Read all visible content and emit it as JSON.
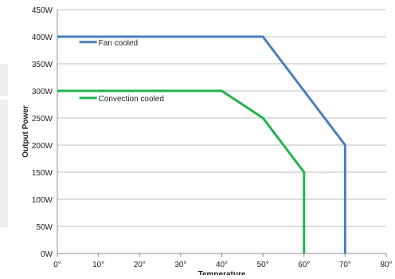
{
  "chart_data": {
    "type": "line",
    "title": "",
    "xlabel": "Temperature",
    "ylabel": "Output Power",
    "xlim": [
      0,
      80
    ],
    "ylim": [
      0,
      450
    ],
    "x_ticks": [
      0,
      10,
      20,
      30,
      40,
      50,
      60,
      70,
      80
    ],
    "x_tick_labels": [
      "0°",
      "10°",
      "20°",
      "30°",
      "40°",
      "50°",
      "60°",
      "70°",
      "80°"
    ],
    "y_ticks": [
      0,
      50,
      100,
      150,
      200,
      250,
      300,
      350,
      400,
      450
    ],
    "y_tick_labels": [
      "0W",
      "50W",
      "100W",
      "150W",
      "200W",
      "250W",
      "300W",
      "350W",
      "400W",
      "450W"
    ],
    "grid": {
      "horizontal": true,
      "vertical": false
    },
    "legend_position": "inline",
    "series": [
      {
        "name": "Fan cooled",
        "color": "#4a7ebb",
        "points": [
          [
            0,
            400
          ],
          [
            50,
            400
          ],
          [
            70,
            200
          ],
          [
            70,
            0
          ]
        ],
        "label_anchor": [
          10,
          390
        ]
      },
      {
        "name": "Convection cooled",
        "color": "#22b24c",
        "points": [
          [
            0,
            300
          ],
          [
            40,
            300
          ],
          [
            50,
            250
          ],
          [
            60,
            150
          ],
          [
            60,
            0
          ]
        ],
        "label_anchor": [
          10,
          287
        ]
      }
    ]
  }
}
